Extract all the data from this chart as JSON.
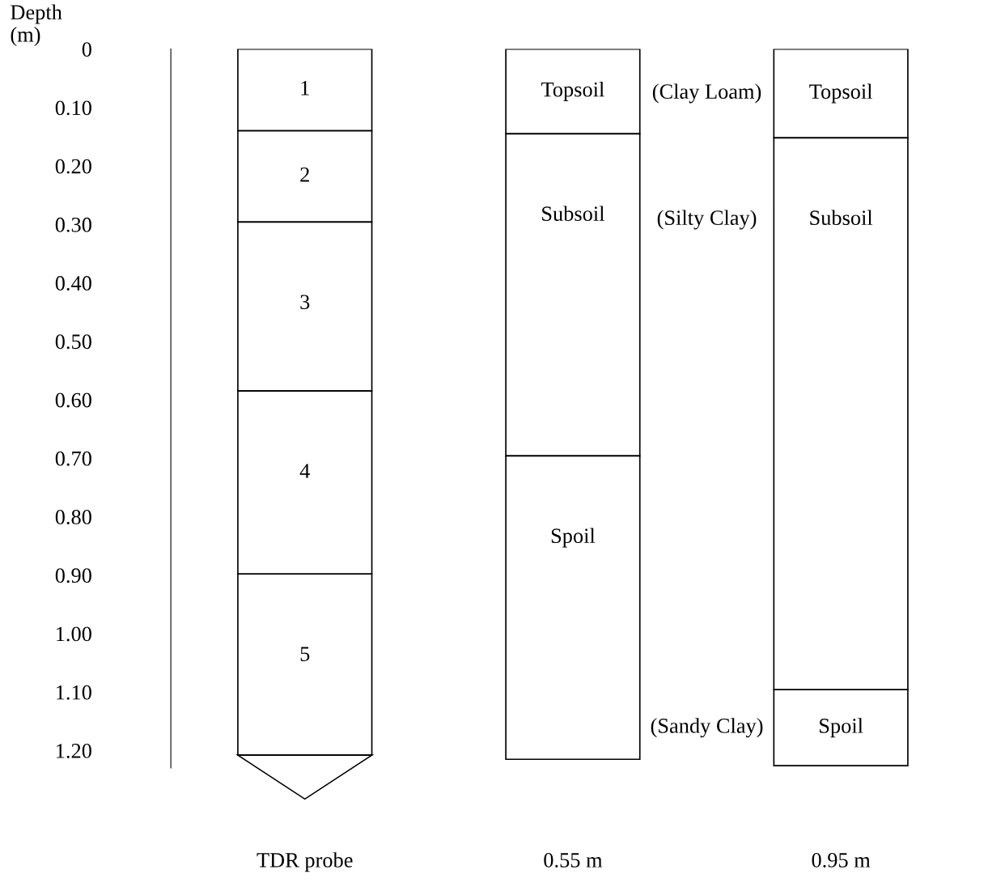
{
  "chart_data": {
    "type": "bar",
    "stacked": true,
    "ylabel": "Depth\n(m)",
    "categories": [
      "TDR probe",
      "0.55 m",
      "0.95 m"
    ],
    "series": [
      {
        "color": "#ffffff",
        "values": [
          0.14,
          0.145,
          0.152
        ]
      },
      {
        "color": "#ffffff",
        "values": [
          0.156,
          0.551,
          0.944
        ]
      },
      {
        "color": "#ffffff",
        "values": [
          0.289,
          0.519,
          0.13
        ]
      },
      {
        "color": "#ffffff",
        "values": [
          0.313,
          null,
          null
        ]
      },
      {
        "color": "#ffffff",
        "values": [
          0.31,
          null,
          null
        ]
      }
    ],
    "ylim": [
      1.23,
      0
    ],
    "yticks": [
      {
        "value": 0,
        "label": "0"
      },
      {
        "value": 0.1,
        "label": "0.10"
      },
      {
        "value": 0.2,
        "label": "0.20"
      },
      {
        "value": 0.3,
        "label": "0.30"
      },
      {
        "value": 0.4,
        "label": "0.40"
      },
      {
        "value": 0.5,
        "label": "0.50"
      },
      {
        "value": 0.6,
        "label": "0.60"
      },
      {
        "value": 0.7,
        "label": "0.70"
      },
      {
        "value": 0.8,
        "label": "0.80"
      },
      {
        "value": 0.9,
        "label": "0.90"
      },
      {
        "value": 1.0,
        "label": "1.00"
      },
      {
        "value": 1.1,
        "label": "1.10"
      },
      {
        "value": 1.2,
        "label": "1.20"
      }
    ],
    "grid": false,
    "legend": false,
    "annotations": [
      "1",
      "2",
      "3",
      "4",
      "5",
      "Topsoil",
      "Subsoil",
      "Spoil",
      "Topsoil",
      "Subsoil",
      "Spoil",
      "(Clay Loam)",
      "(Silty Clay)",
      "(Sandy Clay)"
    ]
  }
}
